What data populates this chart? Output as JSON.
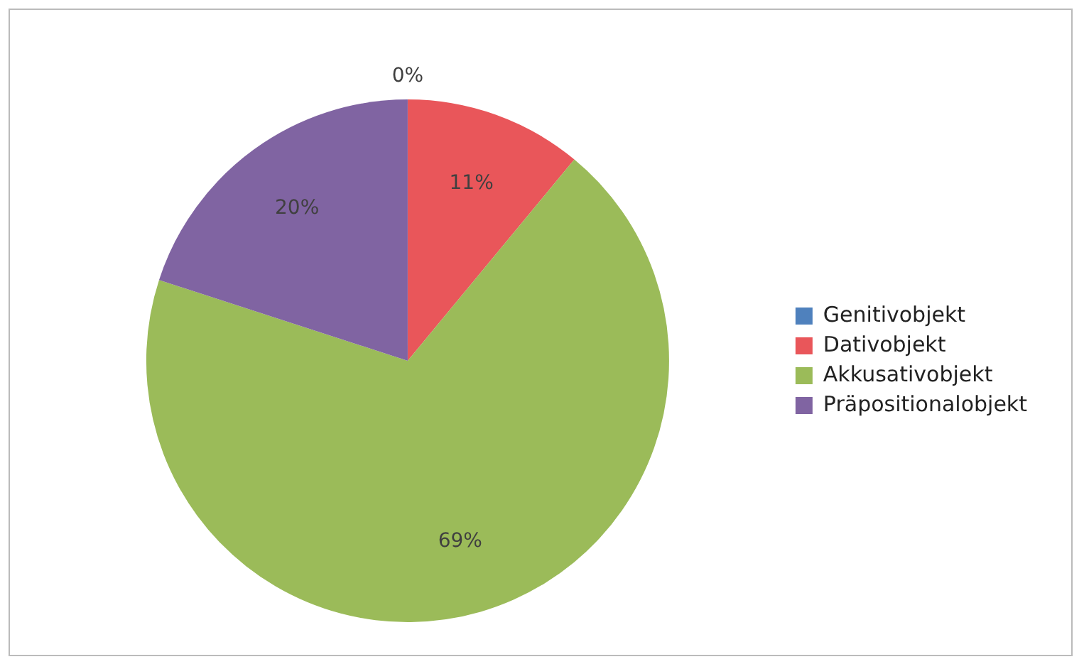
{
  "chart_data": {
    "type": "pie",
    "categories": [
      "Genitivobjekt",
      "Dativobjekt",
      "Akkusativobjekt",
      "Präpositionalobjekt"
    ],
    "values": [
      0,
      11,
      69,
      20
    ],
    "colors": [
      "#4f81bd",
      "#e9565a",
      "#9bbb59",
      "#8064a2"
    ],
    "value_labels": [
      "0%",
      "11%",
      "69%",
      "20%"
    ],
    "legend": "right"
  }
}
